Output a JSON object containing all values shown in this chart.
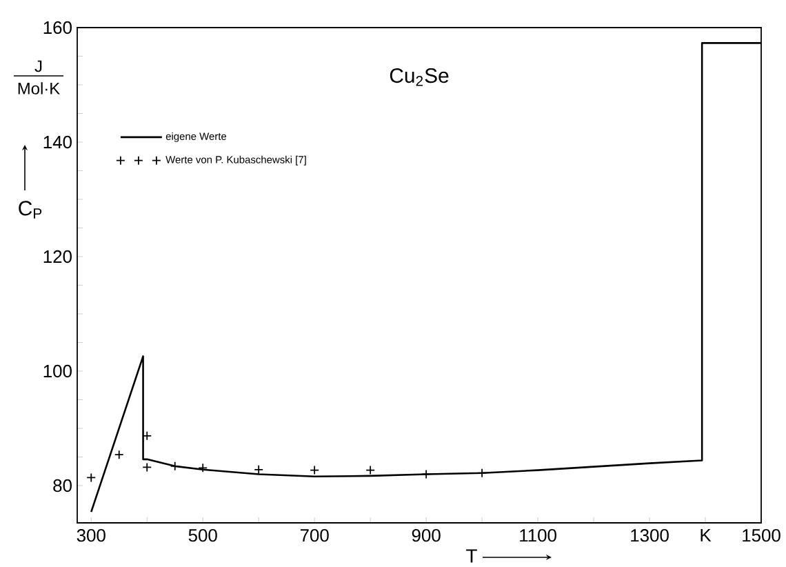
{
  "chart_data": {
    "type": "line",
    "title": "Cu$_{2}$Se",
    "xlabel": "T",
    "ylabel": "C$_{P}$",
    "annotations": [
      "J",
      "Mol·K"
    ],
    "xlim": [
      275,
      1500
    ],
    "ylim": [
      73.5,
      160
    ],
    "xticks": [
      300,
      {
        "value": 400,
        "label": null
      },
      500,
      {
        "value": 600,
        "label": null
      },
      700,
      {
        "value": 800,
        "label": null
      },
      900,
      {
        "value": 1000,
        "label": null
      },
      1100,
      {
        "value": 1200,
        "label": null
      },
      1300,
      {
        "value": 1400,
        "label": "K"
      },
      1500
    ],
    "yticks": [
      80,
      {
        "value": 85,
        "label": null
      },
      {
        "value": 90,
        "label": null
      },
      {
        "value": 95,
        "label": null
      },
      100,
      {
        "value": 105,
        "label": null
      },
      {
        "value": 110,
        "label": null
      },
      {
        "value": 115,
        "label": null
      },
      120,
      {
        "value": 125,
        "label": null
      },
      {
        "value": 130,
        "label": null
      },
      {
        "value": 135,
        "label": null
      },
      140,
      {
        "value": 145,
        "label": null
      },
      {
        "value": 150,
        "label": null
      },
      {
        "value": 155,
        "label": null
      },
      160
    ],
    "grid": false,
    "legend": "top left",
    "series": [
      {
        "name": "eigene Werte",
        "color": "#000000",
        "line_style": "solid",
        "marker": "none",
        "x": [
          300,
          393,
          393,
          400,
          450,
          500,
          600,
          700,
          800,
          900,
          1000,
          1100,
          1200,
          1300,
          1394,
          1394,
          1500
        ],
        "values": [
          75.4,
          102.6,
          84.6,
          84.6,
          83.4,
          82.8,
          82.0,
          81.6,
          81.7,
          82.0,
          82.2,
          82.7,
          83.3,
          83.9,
          84.4,
          157.3,
          157.3
        ]
      },
      {
        "name": "Werte von P. Kubaschewski [7]",
        "type": "scatter",
        "color": "#000000",
        "marker": "cross",
        "x": [
          300,
          350,
          400,
          400,
          450,
          500,
          600,
          700,
          800,
          900,
          1000
        ],
        "values": [
          81.4,
          85.4,
          88.7,
          83.2,
          83.4,
          83.1,
          82.8,
          82.7,
          82.7,
          82.0,
          82.2
        ]
      }
    ]
  }
}
